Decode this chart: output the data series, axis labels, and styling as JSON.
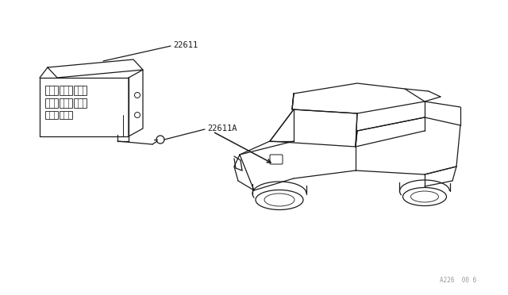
{
  "background_color": "#ffffff",
  "line_color": "#1a1a1a",
  "label_22611": "22611",
  "label_22611A": "22611A",
  "watermark": "A226  00 6",
  "fig_width": 6.4,
  "fig_height": 3.72,
  "dpi": 100
}
